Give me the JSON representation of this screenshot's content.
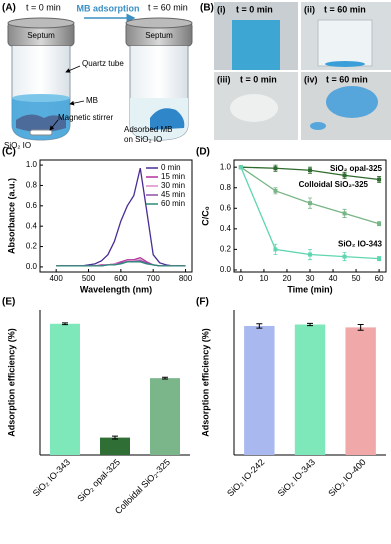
{
  "panel_a": {
    "label": "(A)",
    "t_start": "t = 0 min",
    "process": "MB adsorption",
    "t_end": "t = 60 min",
    "septum_left": "Septum",
    "septum_right": "Septum",
    "quartz_tube": "Quartz tube",
    "mb": "MB",
    "stirrer": "Magnetic stirrer",
    "sio2_io": "SiO₂ IO",
    "adsorbed": [
      "Adsorbed MB",
      "on SiO₂ IO"
    ]
  },
  "panel_b": {
    "label": "(B)",
    "photos": [
      {
        "label": "(i)",
        "time": "t = 0 min"
      },
      {
        "label": "(ii)",
        "time": "t = 60 min"
      },
      {
        "label": "(iii)",
        "time": "t = 0 min"
      },
      {
        "label": "(iv)",
        "time": "t = 60 min"
      }
    ]
  },
  "chart_data": [
    {
      "type": "line",
      "panel_label": "(C)",
      "xlabel": "Wavelength (nm)",
      "ylabel": "Absorbance (a.u.)",
      "xlim": [
        350,
        820
      ],
      "xticks": [
        400,
        500,
        600,
        700,
        800
      ],
      "ylim": [
        -0.05,
        1.05
      ],
      "yticks": [
        {
          "value": 0,
          "label": "0.0"
        },
        0.2,
        0.4,
        0.6,
        0.8,
        {
          "value": 1,
          "label": "1.0"
        }
      ],
      "legend": "upper right",
      "x": [
        400,
        420,
        440,
        460,
        480,
        500,
        520,
        540,
        560,
        580,
        600,
        620,
        640,
        660,
        680,
        700,
        720,
        740,
        760,
        780,
        800
      ],
      "series": [
        {
          "name": "0  min",
          "color": "#4b2c96",
          "values": [
            0.01,
            0.01,
            0.01,
            0.01,
            0.01,
            0.02,
            0.03,
            0.06,
            0.12,
            0.25,
            0.45,
            0.6,
            0.7,
            0.97,
            0.55,
            0.12,
            0.04,
            0.02,
            0.01,
            0.01,
            0.01
          ]
        },
        {
          "name": "15 min",
          "color": "#b2309c",
          "values": [
            0.01,
            0.01,
            0.01,
            0.01,
            0.01,
            0.01,
            0.01,
            0.02,
            0.02,
            0.03,
            0.05,
            0.07,
            0.07,
            0.09,
            0.05,
            0.02,
            0.01,
            0.01,
            0.01,
            0.01,
            0.01
          ]
        },
        {
          "name": "30 min",
          "color": "#d98ac8",
          "values": [
            0.01,
            0.01,
            0.01,
            0.01,
            0.01,
            0.01,
            0.01,
            0.01,
            0.02,
            0.03,
            0.04,
            0.06,
            0.06,
            0.07,
            0.04,
            0.02,
            0.01,
            0.01,
            0.01,
            0.01,
            0.01
          ]
        },
        {
          "name": "45 min",
          "color": "#8b4fa3",
          "values": [
            0.01,
            0.01,
            0.01,
            0.01,
            0.01,
            0.01,
            0.01,
            0.01,
            0.02,
            0.02,
            0.04,
            0.05,
            0.05,
            0.06,
            0.04,
            0.02,
            0.01,
            0.01,
            0.01,
            0.01,
            0.01
          ]
        },
        {
          "name": "60 min",
          "color": "#2a8a78",
          "values": [
            0.01,
            0.01,
            0.01,
            0.01,
            0.01,
            0.01,
            0.01,
            0.01,
            0.02,
            0.02,
            0.03,
            0.05,
            0.05,
            0.05,
            0.03,
            0.02,
            0.01,
            0.01,
            0.01,
            0.01,
            0.01
          ]
        }
      ]
    },
    {
      "type": "line",
      "panel_label": "(D)",
      "xlabel": "Time (min)",
      "ylabel": "C/C₀",
      "markers": true,
      "xlim": [
        -3,
        63
      ],
      "xticks": [
        0,
        10,
        20,
        30,
        40,
        50,
        60
      ],
      "ylim": [
        -0.02,
        1.07
      ],
      "yticks": [
        {
          "value": 0,
          "label": "0.0"
        },
        0.2,
        0.4,
        0.6,
        0.8,
        {
          "value": 1,
          "label": "1.0"
        }
      ],
      "x": [
        0,
        15,
        30,
        45,
        60
      ],
      "series": [
        {
          "name": "SiO₂ opal-325",
          "color": "#2e6b2e",
          "values": [
            1,
            0.99,
            0.97,
            0.92,
            0.88
          ],
          "errors": [
            0.01,
            0.03,
            0.03,
            0.03,
            0.03
          ]
        },
        {
          "name": "Colloidal SiO₂-325",
          "color": "#78b585",
          "values": [
            1,
            0.77,
            0.65,
            0.55,
            0.45
          ],
          "errors": [
            0.01,
            0.03,
            0.05,
            0.04,
            0.02
          ]
        },
        {
          "name": "SiO₂ IO-343",
          "color": "#5fd6b0",
          "values": [
            1,
            0.2,
            0.15,
            0.13,
            0.11
          ],
          "errors": [
            0.01,
            0.05,
            0.05,
            0.04,
            0.02
          ]
        }
      ]
    },
    {
      "type": "bar",
      "panel_label": "(E)",
      "ylabel": "Adsorption efficiency (%)",
      "ylim": [
        0,
        100
      ],
      "categories": [
        "SiO₂ IO-343",
        "SiO₂ opal-325",
        "Colloidal SiO₂-325"
      ],
      "values": [
        90.5,
        12,
        53
      ],
      "errors": [
        0.6,
        1,
        0.6
      ],
      "colors": [
        "#7ee8bb",
        "#2f6e35",
        "#7bb58a"
      ]
    },
    {
      "type": "bar",
      "panel_label": "(F)",
      "ylabel": "Adsorption efficiency (%)",
      "ylim": [
        0,
        100
      ],
      "categories": [
        "SiO₂ IO-242",
        "SiO₂ IO-343",
        "SiO₂ IO-400"
      ],
      "values": [
        89,
        90,
        88
      ],
      "errors": [
        1.5,
        0.8,
        2
      ],
      "colors": [
        "#a9b8ee",
        "#7ee8bb",
        "#f0a8a8"
      ]
    }
  ]
}
